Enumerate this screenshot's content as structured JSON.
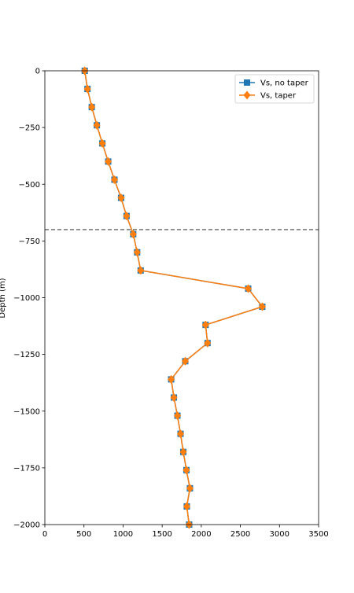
{
  "chart_data": {
    "type": "line",
    "title": "",
    "xlabel": "",
    "ylabel": "Depth (m)",
    "xlim": [
      0,
      3500
    ],
    "ylim": [
      -2000,
      0
    ],
    "x_ticks": [
      0,
      500,
      1000,
      1500,
      2000,
      2500,
      3000,
      3500
    ],
    "y_ticks": [
      0,
      -250,
      -500,
      -750,
      -1000,
      -1250,
      -1500,
      -1750,
      -2000
    ],
    "x_tick_labels": [
      "0",
      "500",
      "1000",
      "1500",
      "2000",
      "2500",
      "3000",
      "3500"
    ],
    "y_tick_labels": [
      "0",
      "−250",
      "−500",
      "−750",
      "−1000",
      "−1250",
      "−1500",
      "−1750",
      "−2000"
    ],
    "reference_line": {
      "orientation": "horizontal",
      "y": -700,
      "style": "dashed",
      "color": "#404040"
    },
    "legend": {
      "position": "top-right"
    },
    "series": [
      {
        "name": "Vs, no taper",
        "color": "#1f77b4",
        "marker": "square",
        "x": [
          510,
          545,
          600,
          665,
          735,
          810,
          890,
          975,
          1045,
          1130,
          1180,
          1225,
          2600,
          2780,
          2055,
          2080,
          1795,
          1615,
          1650,
          1695,
          1735,
          1770,
          1810,
          1855,
          1815,
          1845
        ],
        "y": [
          0,
          -80,
          -160,
          -240,
          -320,
          -400,
          -480,
          -560,
          -640,
          -720,
          -800,
          -880,
          -960,
          -1040,
          -1120,
          -1200,
          -1280,
          -1360,
          -1440,
          -1520,
          -1600,
          -1680,
          -1760,
          -1840,
          -1920,
          -2000
        ]
      },
      {
        "name": "Vs, taper",
        "color": "#ff7f0e",
        "marker": "diamond",
        "x": [
          510,
          545,
          600,
          665,
          735,
          810,
          890,
          975,
          1045,
          1130,
          1180,
          1225,
          2600,
          2780,
          2055,
          2080,
          1795,
          1615,
          1650,
          1695,
          1735,
          1770,
          1810,
          1855,
          1815,
          1845
        ],
        "y": [
          0,
          -80,
          -160,
          -240,
          -320,
          -400,
          -480,
          -560,
          -640,
          -720,
          -800,
          -880,
          -960,
          -1040,
          -1120,
          -1200,
          -1280,
          -1360,
          -1440,
          -1520,
          -1600,
          -1680,
          -1760,
          -1840,
          -1920,
          -2000
        ]
      }
    ]
  }
}
